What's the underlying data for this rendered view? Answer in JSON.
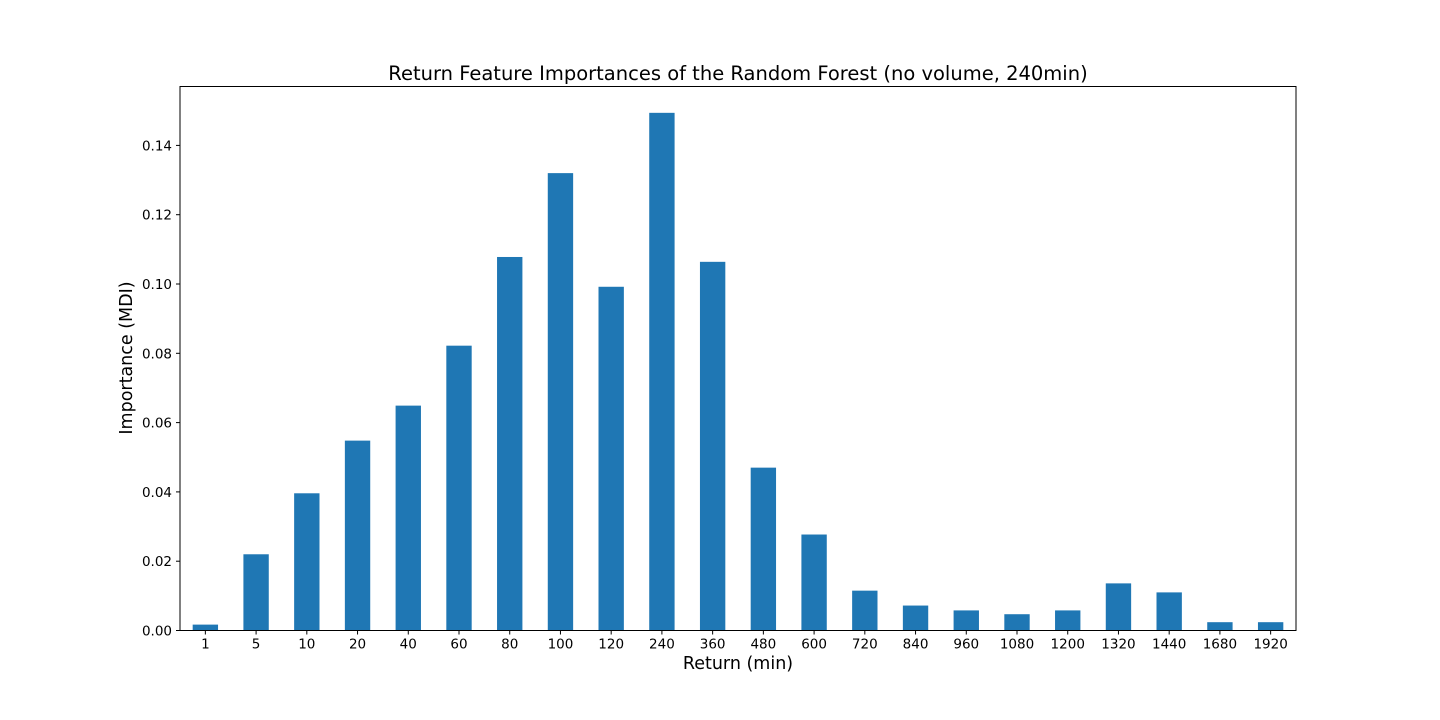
{
  "chart_data": {
    "type": "bar",
    "title": "Return Feature Importances of the Random Forest (no volume, 240min)",
    "xlabel": "Return (min)",
    "ylabel": "Importance (MDI)",
    "categories": [
      "1",
      "5",
      "10",
      "20",
      "40",
      "60",
      "80",
      "100",
      "120",
      "240",
      "360",
      "480",
      "600",
      "720",
      "840",
      "960",
      "1080",
      "1200",
      "1320",
      "1440",
      "1680",
      "1920"
    ],
    "values": [
      0.0017,
      0.022,
      0.0396,
      0.0548,
      0.0649,
      0.0822,
      0.1078,
      0.132,
      0.0992,
      0.1494,
      0.1064,
      0.047,
      0.0277,
      0.0115,
      0.0072,
      0.0058,
      0.0047,
      0.0058,
      0.0136,
      0.011,
      0.0024,
      0.0024
    ],
    "ylim": [
      0,
      0.157
    ],
    "yticks": [
      "0.00",
      "0.02",
      "0.04",
      "0.06",
      "0.08",
      "0.10",
      "0.12",
      "0.14"
    ],
    "grid": false,
    "bar_color": "#1f77b4"
  }
}
